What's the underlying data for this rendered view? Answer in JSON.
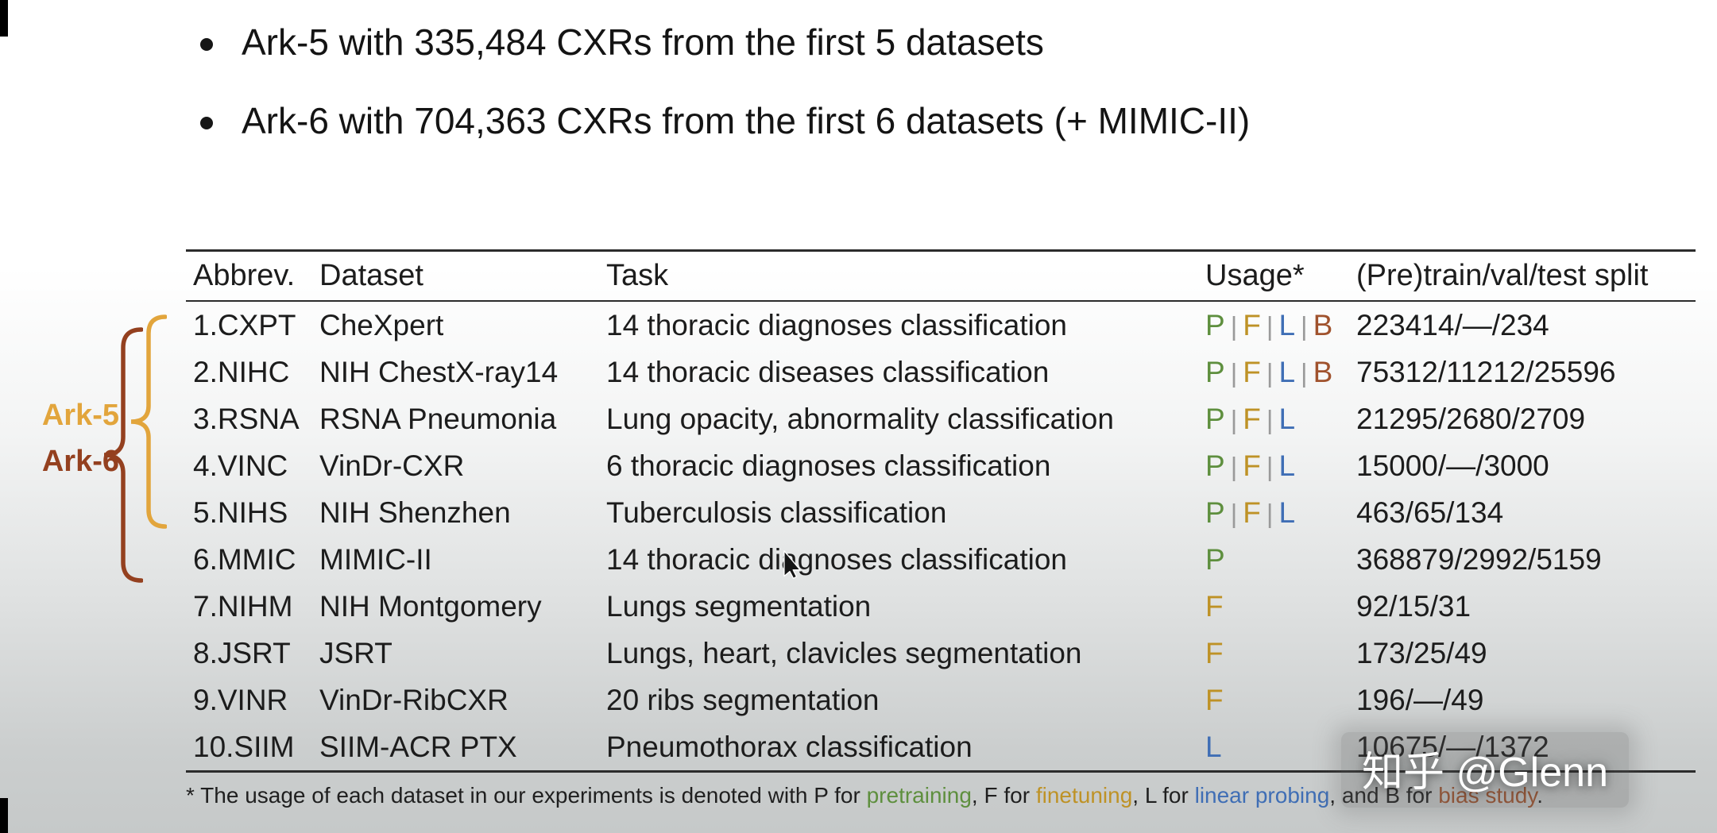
{
  "bullets": [
    {
      "text": "Ark-5 with 335,484 CXRs from the first 5 datasets"
    },
    {
      "text": "Ark-6 with 704,363 CXRs from the first 6 datasets (+ MIMIC-II)"
    }
  ],
  "groups": {
    "ark5": {
      "label": "Ark-5"
    },
    "ark6": {
      "label": "Ark-6"
    }
  },
  "colors": {
    "ark5": "#E2A53C",
    "ark6": "#94401F",
    "P": "#5E8F3E",
    "F": "#BE9226",
    "L": "#3F6EB5",
    "B": "#A0522D",
    "separator": "#9a9a9a"
  },
  "table": {
    "headers": [
      "Abbrev.",
      "Dataset",
      "Task",
      "Usage*",
      "(Pre)train/val/test split"
    ],
    "rows": [
      {
        "abbrev": "1.CXPT",
        "dataset": "CheXpert",
        "task": "14 thoracic diagnoses classification",
        "usage": [
          "P",
          "F",
          "L",
          "B"
        ],
        "split": "223414/—/234"
      },
      {
        "abbrev": "2.NIHC",
        "dataset": "NIH ChestX-ray14",
        "task": "14 thoracic diseases classification",
        "usage": [
          "P",
          "F",
          "L",
          "B"
        ],
        "split": "75312/11212/25596"
      },
      {
        "abbrev": "3.RSNA",
        "dataset": "RSNA Pneumonia",
        "task": "Lung opacity, abnormality classification",
        "usage": [
          "P",
          "F",
          "L"
        ],
        "split": "21295/2680/2709"
      },
      {
        "abbrev": "4.VINC",
        "dataset": "VinDr-CXR",
        "task": "6 thoracic diagnoses classification",
        "usage": [
          "P",
          "F",
          "L"
        ],
        "split": "15000/—/3000"
      },
      {
        "abbrev": "5.NIHS",
        "dataset": "NIH Shenzhen",
        "task": "Tuberculosis classification",
        "usage": [
          "P",
          "F",
          "L"
        ],
        "split": "463/65/134"
      },
      {
        "abbrev": "6.MMIC",
        "dataset": "MIMIC-II",
        "task": "14 thoracic diagnoses classification",
        "usage": [
          "P"
        ],
        "split": "368879/2992/5159"
      },
      {
        "abbrev": "7.NIHM",
        "dataset": "NIH Montgomery",
        "task": "Lungs segmentation",
        "usage": [
          "F"
        ],
        "split": "92/15/31"
      },
      {
        "abbrev": "8.JSRT",
        "dataset": "JSRT",
        "task": "Lungs, heart, clavicles segmentation",
        "usage": [
          "F"
        ],
        "split": "173/25/49"
      },
      {
        "abbrev": "9.VINR",
        "dataset": "VinDr-RibCXR",
        "task": "20 ribs segmentation",
        "usage": [
          "F"
        ],
        "split": "196/—/49"
      },
      {
        "abbrev": "10.SIIM",
        "dataset": "SIIM-ACR PTX",
        "task": "Pneumothorax classification",
        "usage": [
          "L"
        ],
        "split": "10675/—/1372"
      }
    ]
  },
  "footnote": {
    "segments": [
      {
        "text": "* The usage of each dataset in our experiments is denoted with P for "
      },
      {
        "text": "pretraining",
        "color": "P"
      },
      {
        "text": ", F for "
      },
      {
        "text": "finetuning",
        "color": "F"
      },
      {
        "text": ", L for "
      },
      {
        "text": "linear probing",
        "color": "L"
      },
      {
        "text": ", and B for "
      },
      {
        "text": "bias study",
        "color": "B"
      },
      {
        "text": "."
      }
    ]
  },
  "watermark": "知乎 @Glenn"
}
